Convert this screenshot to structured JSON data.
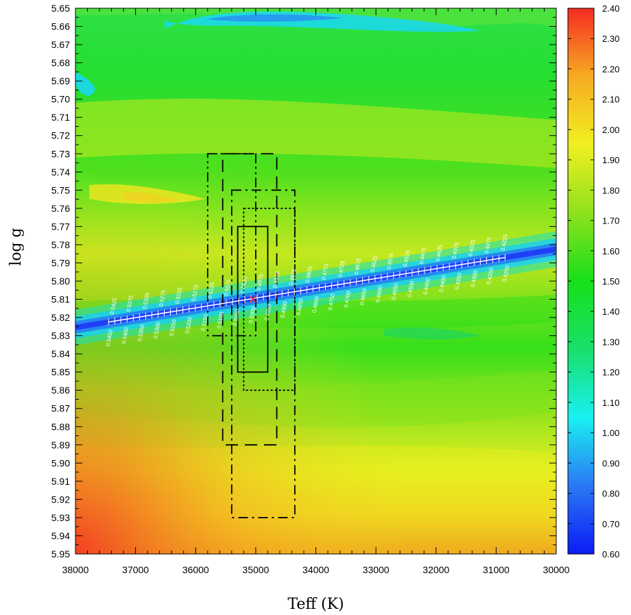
{
  "chart_data": {
    "type": "heatmap",
    "title": "",
    "xlabel": "Teff (K)",
    "ylabel": "log g",
    "xlim": [
      38000,
      30000
    ],
    "ylim": [
      5.65,
      5.95
    ],
    "x_ticks": [
      {
        "v": 38000,
        "label": "38000"
      },
      {
        "v": 37000,
        "label": "37000"
      },
      {
        "v": 36000,
        "label": "36000"
      },
      {
        "v": 35000,
        "label": "35000"
      },
      {
        "v": 34000,
        "label": "34000"
      },
      {
        "v": 33000,
        "label": "33000"
      },
      {
        "v": 32000,
        "label": "32000"
      },
      {
        "v": 31000,
        "label": "31000"
      },
      {
        "v": 30000,
        "label": "30000"
      }
    ],
    "y_ticks": [
      {
        "v": 5.65,
        "label": "5.65"
      },
      {
        "v": 5.66,
        "label": "5.66"
      },
      {
        "v": 5.67,
        "label": "5.67"
      },
      {
        "v": 5.68,
        "label": "5.68"
      },
      {
        "v": 5.69,
        "label": "5.69"
      },
      {
        "v": 5.7,
        "label": "5.70"
      },
      {
        "v": 5.71,
        "label": "5.71"
      },
      {
        "v": 5.72,
        "label": "5.72"
      },
      {
        "v": 5.73,
        "label": "5.73"
      },
      {
        "v": 5.74,
        "label": "5.74"
      },
      {
        "v": 5.75,
        "label": "5.75"
      },
      {
        "v": 5.76,
        "label": "5.76"
      },
      {
        "v": 5.77,
        "label": "5.77"
      },
      {
        "v": 5.78,
        "label": "5.78"
      },
      {
        "v": 5.79,
        "label": "5.79"
      },
      {
        "v": 5.8,
        "label": "5.80"
      },
      {
        "v": 5.81,
        "label": "5.81"
      },
      {
        "v": 5.82,
        "label": "5.82"
      },
      {
        "v": 5.83,
        "label": "5.83"
      },
      {
        "v": 5.84,
        "label": "5.84"
      },
      {
        "v": 5.85,
        "label": "5.85"
      },
      {
        "v": 5.86,
        "label": "5.86"
      },
      {
        "v": 5.87,
        "label": "5.87"
      },
      {
        "v": 5.88,
        "label": "5.88"
      },
      {
        "v": 5.89,
        "label": "5.89"
      },
      {
        "v": 5.9,
        "label": "5.90"
      },
      {
        "v": 5.91,
        "label": "5.91"
      },
      {
        "v": 5.92,
        "label": "5.92"
      },
      {
        "v": 5.93,
        "label": "5.93"
      },
      {
        "v": 5.94,
        "label": "5.94"
      },
      {
        "v": 5.95,
        "label": "5.95"
      }
    ],
    "colorbar": {
      "range": [
        0.6,
        2.4
      ],
      "ticks": [
        {
          "v": 0.6,
          "label": "0.60"
        },
        {
          "v": 0.7,
          "label": "0.70"
        },
        {
          "v": 0.8,
          "label": "0.80"
        },
        {
          "v": 0.9,
          "label": "0.90"
        },
        {
          "v": 1.0,
          "label": "1.00"
        },
        {
          "v": 1.1,
          "label": "1.10"
        },
        {
          "v": 1.2,
          "label": "1.20"
        },
        {
          "v": 1.3,
          "label": "1.30"
        },
        {
          "v": 1.4,
          "label": "1.40"
        },
        {
          "v": 1.5,
          "label": "1.50"
        },
        {
          "v": 1.6,
          "label": "1.60"
        },
        {
          "v": 1.7,
          "label": "1.70"
        },
        {
          "v": 1.8,
          "label": "1.80"
        },
        {
          "v": 1.9,
          "label": "1.90"
        },
        {
          "v": 2.0,
          "label": "2.00"
        },
        {
          "v": 2.1,
          "label": "2.10"
        },
        {
          "v": 2.2,
          "label": "2.20"
        },
        {
          "v": 2.3,
          "label": "2.30"
        },
        {
          "v": 2.4,
          "label": "2.40"
        }
      ],
      "stops": [
        "#0b1cf5",
        "#2b78f3",
        "#19f0f2",
        "#18e06a",
        "#17e01a",
        "#8ee11d",
        "#f1f020",
        "#f6ab22",
        "#f52b22"
      ]
    },
    "valley_line": {
      "start": {
        "teff": 37450,
        "logg": 5.8225
      },
      "end": {
        "teff": 30850,
        "logg": 5.787
      },
      "color": "#ffffff"
    },
    "mass_labels_upper": [
      "0.5425",
      "0.5375",
      "0.5325",
      "0.5275",
      "0.5225",
      "0.5175",
      "0.5125",
      "0.5075",
      "0.5025",
      "0.4975",
      "0.4925",
      "0.4875",
      "0.4825",
      "0.4775",
      "0.4725",
      "0.4675",
      "0.4625",
      "0.4575",
      "0.4525",
      "0.4475",
      "0.4425",
      "0.4375",
      "0.4325",
      "0.4275",
      "0.4225"
    ],
    "mass_labels_lower": [
      "0.5450",
      "0.5400",
      "0.5350",
      "0.5300",
      "0.5250",
      "0.5200",
      "0.5150",
      "0.5100",
      "0.5050",
      "0.5000",
      "0.4950",
      "0.4900",
      "0.4850",
      "0.4800",
      "0.4750",
      "0.4700",
      "0.4650",
      "0.4600",
      "0.4550",
      "0.4500",
      "0.4450",
      "0.4400",
      "0.4350",
      "0.4300",
      "0.4250",
      "0.4200"
    ],
    "best_fit": {
      "teff": 35050,
      "logg": 5.81,
      "color": "#f52b22"
    },
    "error_boxes": [
      {
        "style": "solid",
        "teff": [
          35300,
          34800
        ],
        "logg": [
          5.77,
          5.85
        ]
      },
      {
        "style": "dotted",
        "teff": [
          35200,
          34350
        ],
        "logg": [
          5.76,
          5.86
        ]
      },
      {
        "style": "dash",
        "teff": [
          35550,
          34650
        ],
        "logg": [
          5.73,
          5.89
        ]
      },
      {
        "style": "dashdot",
        "teff": [
          35400,
          34350
        ],
        "logg": [
          5.75,
          5.93
        ]
      },
      {
        "style": "dashdotdot",
        "teff": [
          35800,
          35000
        ],
        "logg": [
          5.73,
          5.83
        ]
      }
    ]
  }
}
